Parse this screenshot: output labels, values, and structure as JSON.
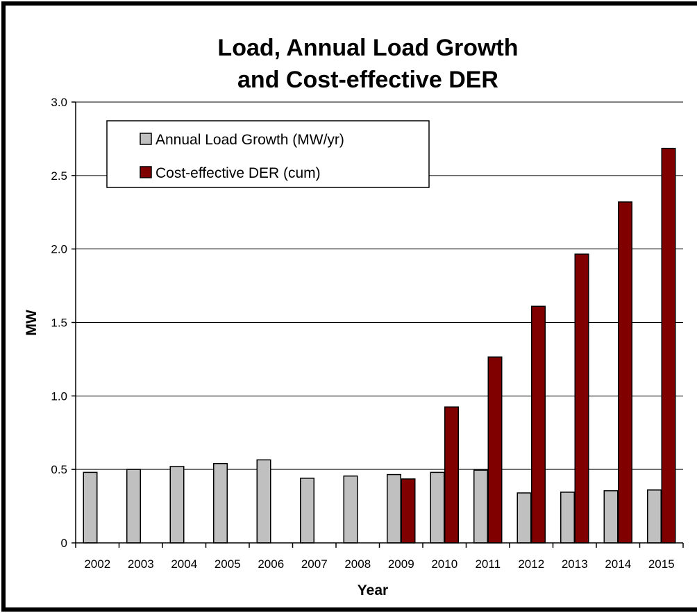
{
  "chart_data": {
    "type": "bar",
    "title_lines": [
      "Load, Annual Load Growth",
      "and Cost-effective DER"
    ],
    "xlabel": "Year",
    "ylabel": "MW",
    "ylim": [
      0,
      3.0
    ],
    "yticks": [
      "0",
      "0.5",
      "1.0",
      "1.5",
      "2.0",
      "2.5",
      "3.0"
    ],
    "ytick_values": [
      0,
      0.5,
      1.0,
      1.5,
      2.0,
      2.5,
      3.0
    ],
    "grid": true,
    "legend_position": "top-left",
    "categories": [
      "2002",
      "2003",
      "2004",
      "2005",
      "2006",
      "2007",
      "2008",
      "2009",
      "2010",
      "2011",
      "2012",
      "2013",
      "2014",
      "2015"
    ],
    "series": [
      {
        "name": "Annual Load Growth (MW/yr)",
        "color": "#c0c0c0",
        "values": [
          0.48,
          0.5,
          0.52,
          0.54,
          0.565,
          0.44,
          0.455,
          0.465,
          0.48,
          0.495,
          0.34,
          0.345,
          0.355,
          0.36
        ]
      },
      {
        "name": "Cost-effective DER (cum)",
        "color": "#800000",
        "values": [
          null,
          null,
          null,
          null,
          null,
          null,
          null,
          0.435,
          0.925,
          1.265,
          1.61,
          1.965,
          2.32,
          2.685
        ]
      }
    ]
  }
}
